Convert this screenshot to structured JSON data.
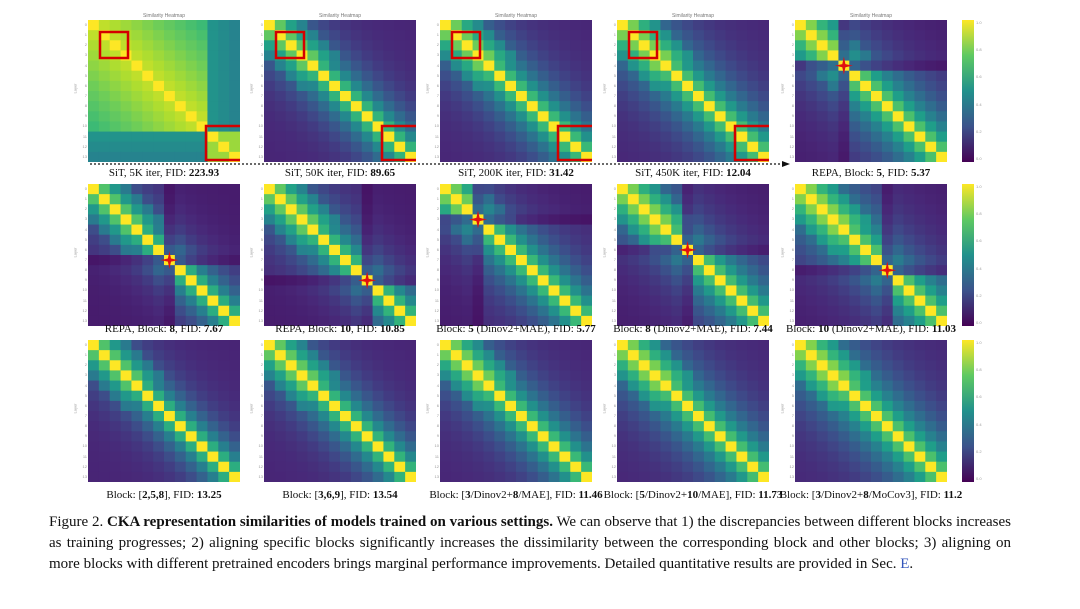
{
  "figure": {
    "rows": [
      [
        {
          "title": "Similarity Heatmap",
          "caption_pre": "SiT, 5K iter, FID: ",
          "caption_bold": "223.93",
          "caption_post": "",
          "style": "block",
          "boxes": true,
          "star": null
        },
        {
          "title": "Similarity Heatmap",
          "caption_pre": "SiT, 50K iter, FID: ",
          "caption_bold": "89.65",
          "caption_post": "",
          "style": "diag",
          "boxes": true,
          "star": null
        },
        {
          "title": "Similarity Heatmap",
          "caption_pre": "SiT, 200K iter, FID: ",
          "caption_bold": "31.42",
          "caption_post": "",
          "style": "diag",
          "boxes": true,
          "star": null
        },
        {
          "title": "Similarity Heatmap",
          "caption_pre": "SiT, 450K iter, FID: ",
          "caption_bold": "12.04",
          "caption_post": "",
          "style": "diag",
          "boxes": true,
          "star": null
        },
        {
          "title": "Similarity Heatmap",
          "caption_pre": "REPA, Block: ",
          "caption_bold": "5",
          "caption_post": ", FID: ",
          "caption_bold2": "5.37",
          "style": "diag",
          "boxes": false,
          "star": 4
        }
      ],
      [
        {
          "title": "",
          "caption_pre": "REPA, Block: ",
          "caption_bold": "8",
          "caption_post": ", FID: ",
          "caption_bold2": "7.67",
          "style": "diag",
          "boxes": false,
          "star": 7
        },
        {
          "title": "",
          "caption_pre": "REPA, Block: ",
          "caption_bold": "10",
          "caption_post": ", FID: ",
          "caption_bold2": "10.85",
          "style": "diag",
          "boxes": false,
          "star": 9
        },
        {
          "title": "",
          "caption_pre": "Block: ",
          "caption_bold": "5",
          "caption_post": " (Dinov2+MAE), FID: ",
          "caption_bold2": "5.77",
          "style": "diag",
          "boxes": false,
          "star": 3
        },
        {
          "title": "",
          "caption_pre": "Block: ",
          "caption_bold": "8",
          "caption_post": " (Dinov2+MAE), FID: ",
          "caption_bold2": "7.44",
          "style": "diag",
          "boxes": false,
          "star": 6
        },
        {
          "title": "",
          "caption_pre": "Block: ",
          "caption_bold": "10",
          "caption_post": " (Dinov2+MAE), FID: ",
          "caption_bold2": "11.03",
          "style": "diag",
          "boxes": false,
          "star": 8
        }
      ],
      [
        {
          "title": "",
          "caption_pre": "Block: [",
          "caption_bold": "2,5,8",
          "caption_post": "], FID: ",
          "caption_bold2": "13.25",
          "style": "diag",
          "boxes": false,
          "star": null
        },
        {
          "title": "",
          "caption_pre": "Block: [",
          "caption_bold": "3,6,9",
          "caption_post": "], FID: ",
          "caption_bold2": "13.54",
          "style": "diag",
          "boxes": false,
          "star": null
        },
        {
          "title": "",
          "caption_pre": "Block: [",
          "caption_bold": "3",
          "caption_post": "/Dinov2+",
          "caption_bold2": "8",
          "caption_post2": "/MAE], FID: ",
          "caption_bold3": "11.46",
          "style": "diag",
          "boxes": false,
          "star": null
        },
        {
          "title": "",
          "caption_pre": "Block: [",
          "caption_bold": "5",
          "caption_post": "/Dinov2+",
          "caption_bold2": "10",
          "caption_post2": "/MAE], FID: ",
          "caption_bold3": "11.73",
          "style": "diag",
          "boxes": false,
          "star": null
        },
        {
          "title": "",
          "caption_pre": "Block: [",
          "caption_bold": "3",
          "caption_post": "/Dinov2+",
          "caption_bold2": "8",
          "caption_post2": "/MoCov3], FID: ",
          "caption_bold3": "11.2",
          "style": "diag",
          "boxes": false,
          "star": null
        }
      ]
    ],
    "colorbar_ticks": [
      "1.0",
      "0.8",
      "0.6",
      "0.4",
      "0.2",
      "0.0"
    ],
    "axis_ticks": [
      "0",
      "1",
      "2",
      "3",
      "4",
      "5",
      "6",
      "7",
      "8",
      "9",
      "10",
      "11",
      "12",
      "13"
    ],
    "axis_label": "Layer"
  },
  "caption": {
    "label": "Figure 2. ",
    "lead": "CKA representation similarities of models trained on various settings.",
    "body": " We can observe that 1) the discrepancies between different blocks increases as training progresses; 2) aligning specific blocks significantly increases the dissimilarity between the corresponding block and other blocks; 3) aligning on more blocks with different pretrained encoders brings marginal performance improvements. Detailed quantitative results are provided in Sec. ",
    "ref": "E",
    "end": "."
  }
}
